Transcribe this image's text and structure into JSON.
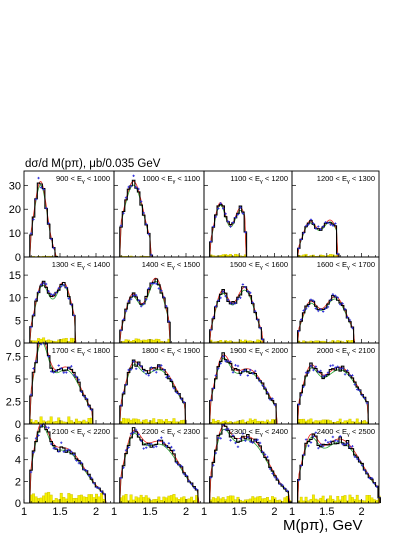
{
  "figure": {
    "ylabel": "dσ/d M(pπ), μb/0.035 GeV",
    "xlabel": "M(pπ), GeV"
  },
  "axes": {
    "x_ticks": [
      "1",
      "1.5",
      "2"
    ],
    "row_y_ticks": [
      [
        "0",
        "10",
        "20",
        "30"
      ],
      [
        "0",
        "5",
        "10",
        "15"
      ],
      [
        "0",
        "2.5",
        "5",
        "7.5"
      ],
      [
        "0",
        "2",
        "4",
        "6"
      ]
    ],
    "row_ylim": [
      [
        0,
        36
      ],
      [
        0,
        19
      ],
      [
        0,
        9
      ],
      [
        0,
        7.3
      ]
    ],
    "xlim": [
      1.0,
      2.25
    ]
  },
  "panels": [
    {
      "label": "900 < E_γ < 1000"
    },
    {
      "label": "1000 < E_γ < 1100"
    },
    {
      "label": "1100 < E_γ < 1200"
    },
    {
      "label": "1200 < E_γ < 1300"
    },
    {
      "label": "1300 < E_γ < 1400"
    },
    {
      "label": "1400 < E_γ < 1500"
    },
    {
      "label": "1500 < E_γ < 1600"
    },
    {
      "label": "1600 < E_γ < 1700"
    },
    {
      "label": "1700 < E_γ < 1800"
    },
    {
      "label": "1800 < E_γ < 1900"
    },
    {
      "label": "1900 < E_γ < 2000"
    },
    {
      "label": "2000 < E_γ < 2100"
    },
    {
      "label": "2100 < E_γ < 2200"
    },
    {
      "label": "2200 < E_γ < 2300"
    },
    {
      "label": "2300 < E_γ < 2400"
    },
    {
      "label": "2400 < E_γ < 2500"
    }
  ],
  "colors": {
    "histogram": "#000000",
    "model_red": "#e8201a",
    "model_green": "#27a030",
    "data_points": "#2a2ad8",
    "background_fill": "#f5f000"
  },
  "chart_data": {
    "type": "histogram-grid",
    "rows": 4,
    "cols": 4,
    "bin_width": 0.035,
    "peaks": [
      [
        {
          "m": 1.23,
          "a": 31,
          "w": 0.09
        }
      ],
      [
        {
          "m": 1.27,
          "a": 31,
          "w": 0.14
        }
      ],
      [
        {
          "m": 1.23,
          "a": 22,
          "w": 0.09
        },
        {
          "m": 1.52,
          "a": 20,
          "w": 0.1
        }
      ],
      [
        {
          "m": 1.25,
          "a": 14,
          "w": 0.1
        },
        {
          "m": 1.55,
          "a": 15,
          "w": 0.12
        }
      ],
      [
        {
          "m": 1.25,
          "a": 12.5,
          "w": 0.1
        },
        {
          "m": 1.55,
          "a": 13,
          "w": 0.12
        }
      ],
      [
        {
          "m": 1.25,
          "a": 10,
          "w": 0.1
        },
        {
          "m": 1.58,
          "a": 14,
          "w": 0.13
        }
      ],
      [
        {
          "m": 1.25,
          "a": 10.5,
          "w": 0.1
        },
        {
          "m": 1.58,
          "a": 12,
          "w": 0.14
        }
      ],
      [
        {
          "m": 1.25,
          "a": 8,
          "w": 0.11
        },
        {
          "m": 1.62,
          "a": 10,
          "w": 0.17
        }
      ],
      [
        {
          "m": 1.23,
          "a": 7.5,
          "w": 0.1
        },
        {
          "m": 1.58,
          "a": 6.2,
          "w": 0.22
        }
      ],
      [
        {
          "m": 1.25,
          "a": 4.5,
          "w": 0.11
        },
        {
          "m": 1.62,
          "a": 6.2,
          "w": 0.25
        }
      ],
      [
        {
          "m": 1.25,
          "a": 5.0,
          "w": 0.11
        },
        {
          "m": 1.62,
          "a": 6.0,
          "w": 0.27
        }
      ],
      [
        {
          "m": 1.25,
          "a": 4.2,
          "w": 0.11
        },
        {
          "m": 1.68,
          "a": 6.2,
          "w": 0.29
        }
      ],
      [
        {
          "m": 1.23,
          "a": 4.4,
          "w": 0.1
        },
        {
          "m": 1.55,
          "a": 5.0,
          "w": 0.3
        }
      ],
      [
        {
          "m": 1.25,
          "a": 3.8,
          "w": 0.11
        },
        {
          "m": 1.62,
          "a": 5.6,
          "w": 0.3
        }
      ],
      [
        {
          "m": 1.25,
          "a": 4.0,
          "w": 0.11
        },
        {
          "m": 1.62,
          "a": 6.0,
          "w": 0.3
        }
      ],
      [
        {
          "m": 1.25,
          "a": 3.6,
          "w": 0.11
        },
        {
          "m": 1.68,
          "a": 5.8,
          "w": 0.33
        }
      ]
    ],
    "mass_min": 1.08,
    "mass_max": [
      1.45,
      1.52,
      1.6,
      1.66,
      1.72,
      1.78,
      1.84,
      1.9,
      1.96,
      2.0,
      2.04,
      2.1,
      2.14,
      2.18,
      2.22,
      2.26
    ],
    "background_level": [
      0.4,
      0.4,
      1.0,
      1.0,
      1.0,
      0.8,
      0.6,
      0.5,
      0.5,
      0.4,
      0.35,
      0.35,
      0.6,
      0.5,
      0.4,
      0.45
    ]
  }
}
